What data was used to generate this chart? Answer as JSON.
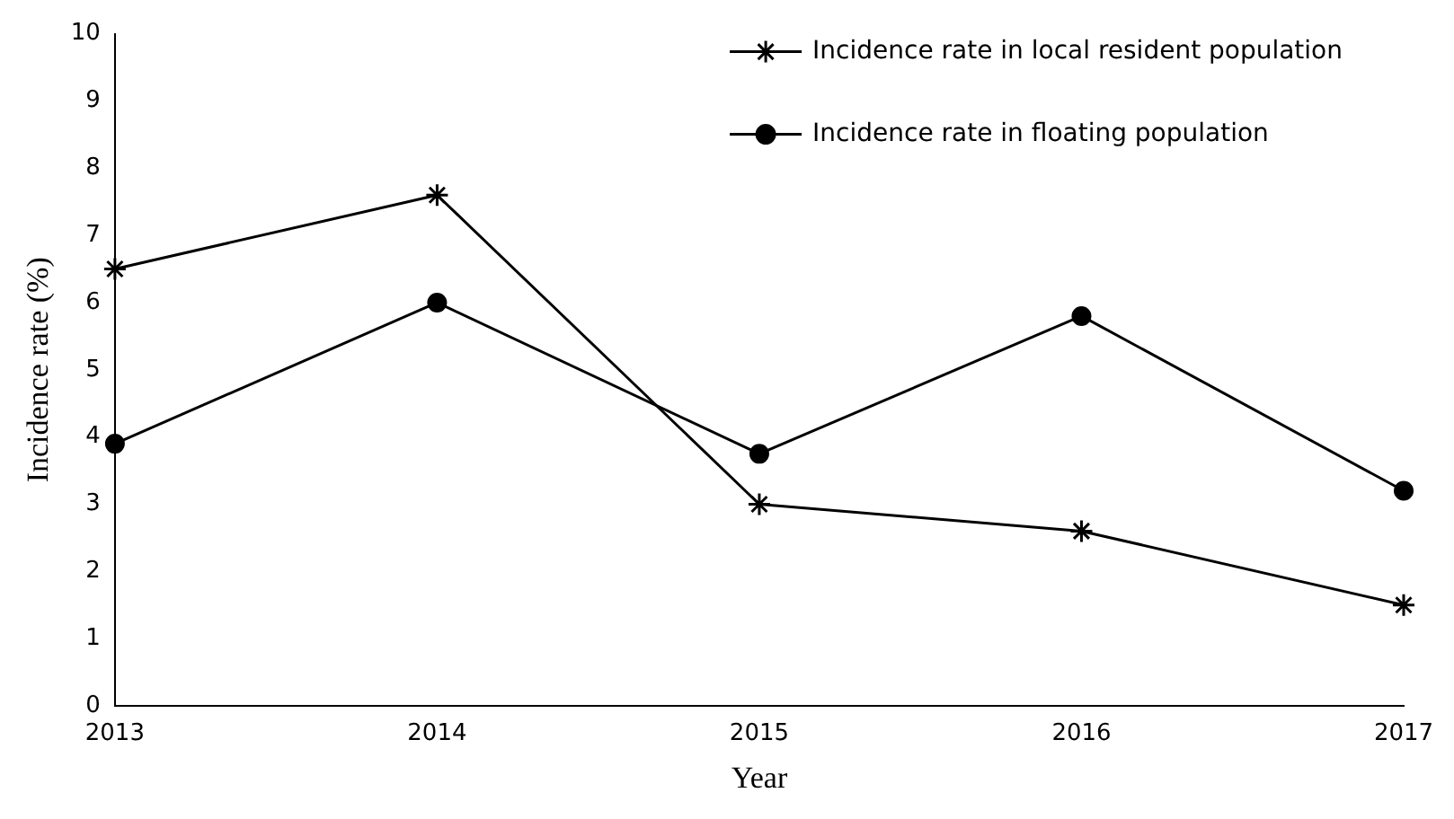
{
  "chart_data": {
    "type": "line",
    "xlabel": "Year",
    "ylabel": "Incidence rate (%)",
    "categories": [
      "2013",
      "2014",
      "2015",
      "2016",
      "2017"
    ],
    "series": [
      {
        "name": "Incidence rate in local resident population",
        "color": "#000000",
        "marker": "cross",
        "values": [
          6.5,
          7.6,
          3.0,
          2.6,
          1.5
        ]
      },
      {
        "name": "Incidence rate in floating population",
        "color": "#000000",
        "marker": "circle",
        "values": [
          3.9,
          6.0,
          3.75,
          5.8,
          3.2
        ]
      }
    ],
    "ylim": [
      0,
      10
    ],
    "yticks": [
      0,
      1,
      2,
      3,
      4,
      5,
      6,
      7,
      8,
      9,
      10
    ],
    "grid": false,
    "legend": "top right",
    "line_style": "solid"
  }
}
